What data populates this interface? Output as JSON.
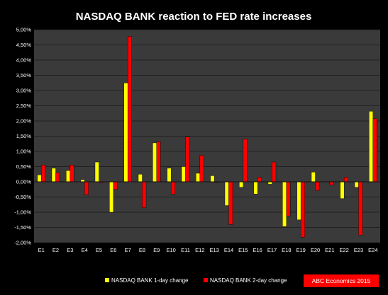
{
  "colors": {
    "background": "#000000",
    "plot_area": "#3a3a3a",
    "series_1": "#ffff00",
    "series_2": "#ff0000",
    "badge": "#ff0000",
    "text": "#ffffff"
  },
  "badge": {
    "text": "ABC Economics 2015"
  },
  "chart_data": {
    "type": "bar",
    "title": "NASDAQ BANK reaction to FED rate increases",
    "xlabel": "",
    "ylabel": "",
    "ylim": [
      -2.0,
      5.0
    ],
    "y_ticks": [
      5.0,
      4.5,
      4.0,
      3.5,
      3.0,
      2.5,
      2.0,
      1.5,
      1.0,
      0.5,
      0.0,
      -0.5,
      -1.0,
      -1.5,
      -2.0
    ],
    "y_tick_labels": [
      "5,00%",
      "4,50%",
      "4,00%",
      "3,50%",
      "3,00%",
      "2,50%",
      "2,00%",
      "1,50%",
      "1,00%",
      "0,50%",
      "0,00%",
      "-0,50%",
      "-1,00%",
      "-1,50%",
      "-2,00%"
    ],
    "grid": true,
    "legend_position": "bottom",
    "categories": [
      "E1",
      "E2",
      "E3",
      "E4",
      "E5",
      "E6",
      "E7",
      "E8",
      "E9",
      "E10",
      "E11",
      "E12",
      "E13",
      "E14",
      "E15",
      "E16",
      "E17",
      "E18",
      "E19",
      "E20",
      "E21",
      "E22",
      "E23",
      "E24"
    ],
    "series": [
      {
        "name": "NASDAQ BANK 1-day change",
        "color": "#ffff00",
        "values": [
          0.23,
          0.45,
          0.37,
          0.07,
          0.65,
          -1.0,
          3.25,
          0.25,
          1.28,
          0.45,
          0.5,
          0.28,
          0.2,
          -0.78,
          -0.18,
          -0.4,
          -0.08,
          -1.47,
          -1.25,
          0.32,
          0.02,
          -0.55,
          -0.18,
          2.32
        ]
      },
      {
        "name": "NASDAQ BANK 2-day change",
        "color": "#ff0000",
        "values": [
          0.55,
          0.3,
          0.55,
          -0.42,
          -0.03,
          -0.25,
          4.78,
          -0.85,
          1.32,
          -0.4,
          1.47,
          0.87,
          -0.02,
          -1.4,
          1.4,
          0.15,
          0.65,
          -1.12,
          -1.82,
          -0.28,
          -0.1,
          0.15,
          -1.75,
          2.08
        ]
      }
    ]
  }
}
